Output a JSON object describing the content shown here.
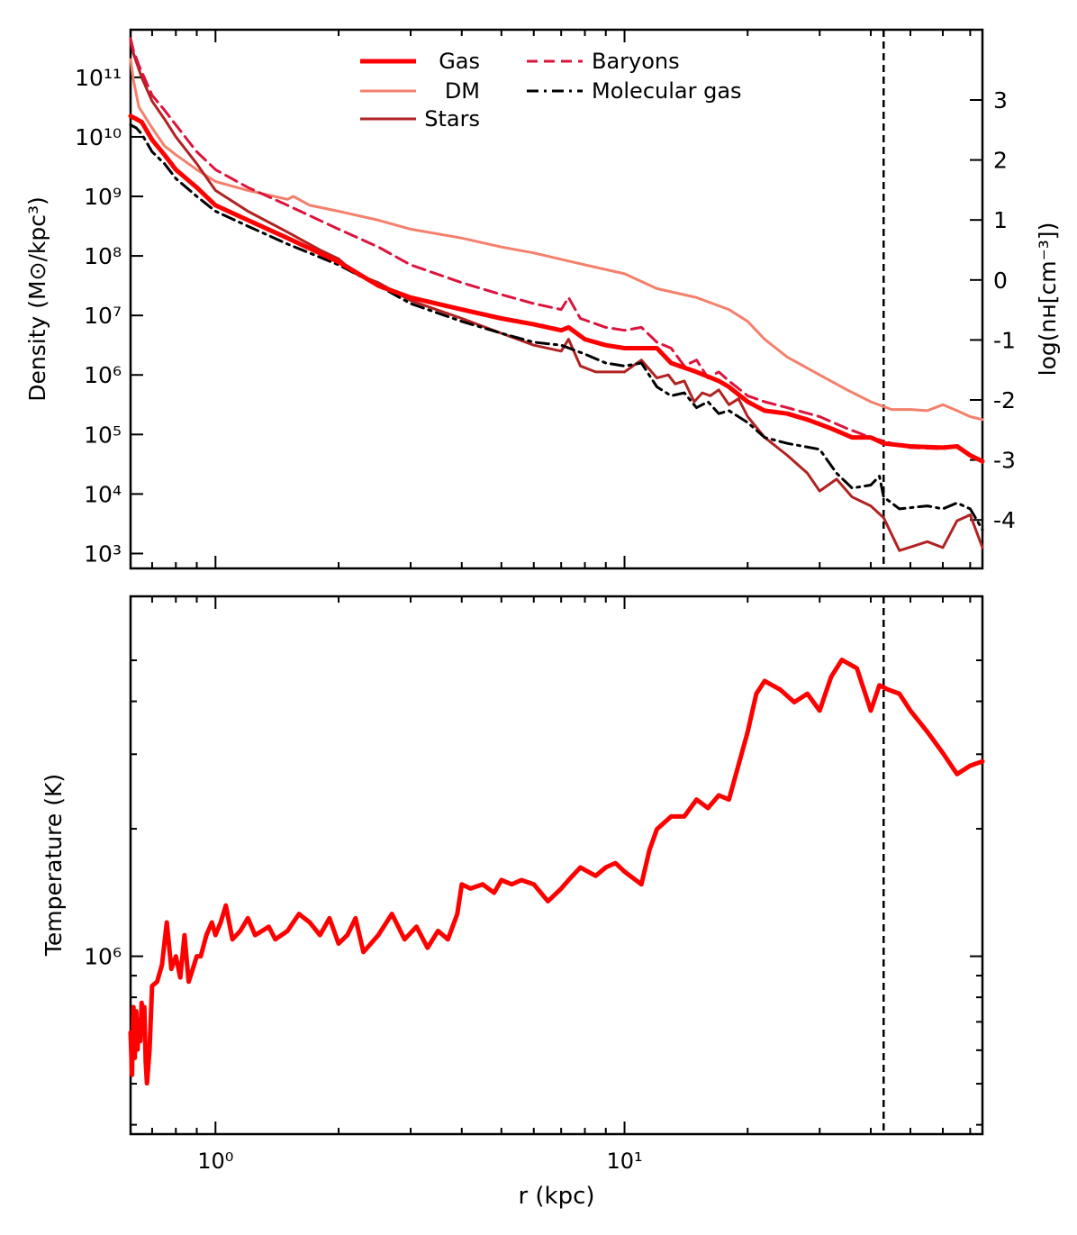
{
  "chart_data": [
    {
      "type": "line",
      "panel": "top",
      "title": "",
      "xlabel": "",
      "ylabel": "Density (M⊙/kpc³)",
      "ylabel_right": "log(nʜ[cm⁻³])",
      "xscale": "log",
      "yscale": "log",
      "xlim": [
        0.62,
        75
      ],
      "ylim_log10": [
        2.75,
        11.8
      ],
      "y_tick_labels": [
        {
          "label": "10³",
          "log10": 3
        },
        {
          "label": "10⁴",
          "log10": 4
        },
        {
          "label": "10⁵",
          "log10": 5
        },
        {
          "label": "10⁶",
          "log10": 6
        },
        {
          "label": "10⁷",
          "log10": 7
        },
        {
          "label": "10⁸",
          "log10": 8
        },
        {
          "label": "10⁹",
          "log10": 9
        },
        {
          "label": "10¹⁰",
          "log10": 10
        },
        {
          "label": "10¹¹",
          "log10": 11
        }
      ],
      "right_axis_ticks": [
        {
          "label": "3",
          "value": 3
        },
        {
          "label": "2",
          "value": 2
        },
        {
          "label": "1",
          "value": 1
        },
        {
          "label": "0",
          "value": 0
        },
        {
          "label": "-1",
          "value": -1
        },
        {
          "label": "-2",
          "value": -2
        },
        {
          "label": "-3",
          "value": -3
        },
        {
          "label": "-4",
          "value": -4
        }
      ],
      "vline_x": 43,
      "legend": [
        {
          "label": "Gas",
          "key": "gas"
        },
        {
          "label": "DM",
          "key": "dm"
        },
        {
          "label": "Stars",
          "key": "stars"
        },
        {
          "label": "Baryons",
          "key": "baryons"
        },
        {
          "label": "Molecular gas",
          "key": "molecular"
        }
      ],
      "series": [
        {
          "name": "Gas",
          "key": "gas",
          "color": "#ff0000",
          "style": "solid",
          "width": 5,
          "x": [
            0.62,
            0.64,
            0.66,
            0.7,
            0.75,
            0.8,
            0.9,
            1.0,
            1.2,
            1.5,
            2.0,
            2.5,
            3.0,
            4.0,
            5.0,
            6.0,
            7.0,
            7.3,
            8.0,
            9.0,
            10.0,
            12.0,
            13.0,
            15.0,
            17.0,
            18.0,
            20.0,
            22.0,
            25.0,
            28.0,
            32.0,
            36.0,
            40.0,
            43.0,
            50.0,
            60.0,
            65.0,
            70.0,
            75.0
          ],
          "y": [
            10.35,
            10.3,
            10.25,
            9.95,
            9.7,
            9.45,
            9.15,
            8.85,
            8.6,
            8.3,
            7.9,
            7.5,
            7.3,
            7.1,
            6.95,
            6.85,
            6.75,
            6.8,
            6.6,
            6.5,
            6.45,
            6.45,
            6.2,
            6.05,
            5.9,
            5.8,
            5.55,
            5.4,
            5.35,
            5.25,
            5.1,
            4.95,
            4.95,
            4.85,
            4.8,
            4.78,
            4.8,
            4.65,
            4.55
          ]
        },
        {
          "name": "DM",
          "key": "dm",
          "color": "#f4806c",
          "style": "solid",
          "width": 3,
          "x": [
            0.62,
            0.63,
            0.65,
            0.7,
            0.75,
            0.8,
            0.9,
            1.0,
            1.2,
            1.5,
            1.55,
            1.7,
            2.0,
            2.5,
            3.0,
            4.0,
            5.0,
            6.0,
            8.0,
            10.0,
            12.0,
            15.0,
            18.0,
            20.0,
            22.0,
            25.0,
            30.0,
            35.0,
            40.0,
            45.0,
            50.0,
            55.0,
            60.0,
            65.0,
            70.0,
            75.0
          ],
          "y": [
            11.3,
            10.95,
            10.5,
            10.15,
            9.85,
            9.7,
            9.45,
            9.25,
            9.1,
            8.95,
            9.0,
            8.85,
            8.75,
            8.6,
            8.45,
            8.3,
            8.15,
            8.05,
            7.85,
            7.7,
            7.45,
            7.3,
            7.1,
            6.9,
            6.6,
            6.3,
            6.0,
            5.75,
            5.55,
            5.42,
            5.42,
            5.4,
            5.5,
            5.4,
            5.3,
            5.25
          ]
        },
        {
          "name": "Stars",
          "key": "stars",
          "color": "#b22222",
          "style": "solid",
          "width": 3,
          "x": [
            0.62,
            0.63,
            0.66,
            0.7,
            0.75,
            0.8,
            0.9,
            1.0,
            1.2,
            1.5,
            1.8,
            2.0,
            2.2,
            2.5,
            3.0,
            4.0,
            5.0,
            6.0,
            7.0,
            7.3,
            7.8,
            8.5,
            10.0,
            11.0,
            12.0,
            12.8,
            13.3,
            14.0,
            14.8,
            15.5,
            16.2,
            17.0,
            18.0,
            19.0,
            20.0,
            22.0,
            25.0,
            28.0,
            30.0,
            33.0,
            36.0,
            40.0,
            43.0,
            47.0,
            55.0,
            60.0,
            65.0,
            70.0,
            75.0
          ],
          "y": [
            11.6,
            11.4,
            11.0,
            10.6,
            10.3,
            10.0,
            9.55,
            9.1,
            8.75,
            8.4,
            8.1,
            7.95,
            7.7,
            7.55,
            7.25,
            6.95,
            6.7,
            6.5,
            6.4,
            6.6,
            6.15,
            6.05,
            6.05,
            6.25,
            5.95,
            6.0,
            5.85,
            5.9,
            5.55,
            5.7,
            5.65,
            5.75,
            5.5,
            5.6,
            5.3,
            4.95,
            4.65,
            4.35,
            4.05,
            4.25,
            3.95,
            3.8,
            3.6,
            3.05,
            3.2,
            3.1,
            3.55,
            3.65,
            3.1
          ]
        },
        {
          "name": "Baryons",
          "key": "baryons",
          "color": "#dc143c",
          "style": "dashed",
          "width": 3,
          "x": [
            0.62,
            0.63,
            0.65,
            0.7,
            0.75,
            0.8,
            0.9,
            1.0,
            1.2,
            1.5,
            2.0,
            2.5,
            3.0,
            4.0,
            5.0,
            6.0,
            7.0,
            7.3,
            7.8,
            9.0,
            10.0,
            11.0,
            12.0,
            13.0,
            14.0,
            15.0,
            16.0,
            17.0,
            18.0,
            20.0,
            22.0,
            25.0,
            30.0,
            35.0,
            40.0,
            45.0,
            50.0,
            60.0,
            65.0,
            70.0,
            75.0
          ],
          "y": [
            11.65,
            11.45,
            11.2,
            10.7,
            10.45,
            10.2,
            9.75,
            9.45,
            9.15,
            8.85,
            8.45,
            8.15,
            7.85,
            7.55,
            7.35,
            7.2,
            7.1,
            7.3,
            6.95,
            6.8,
            6.75,
            6.8,
            6.55,
            6.45,
            6.15,
            6.25,
            5.95,
            6.05,
            5.9,
            5.65,
            5.55,
            5.45,
            5.3,
            5.1,
            4.95,
            4.85,
            4.78,
            4.76,
            4.8,
            4.65,
            4.55
          ]
        },
        {
          "name": "Molecular gas",
          "key": "molecular",
          "color": "#000000",
          "style": "dashdot",
          "width": 3,
          "x": [
            0.62,
            0.64,
            0.66,
            0.7,
            0.75,
            0.8,
            0.9,
            1.0,
            1.2,
            1.5,
            2.0,
            2.5,
            3.0,
            4.0,
            5.0,
            6.0,
            7.0,
            8.0,
            9.0,
            10.0,
            11.0,
            12.0,
            13.0,
            14.0,
            15.0,
            16.0,
            17.0,
            18.0,
            20.0,
            22.0,
            25.0,
            30.0,
            33.0,
            36.0,
            40.0,
            42.0,
            43.0,
            47.0,
            55.0,
            60.0,
            65.0,
            70.0,
            75.0
          ],
          "y": [
            10.2,
            10.15,
            10.05,
            9.75,
            9.55,
            9.3,
            9.0,
            8.75,
            8.5,
            8.2,
            7.85,
            7.5,
            7.2,
            6.9,
            6.7,
            6.55,
            6.5,
            6.35,
            6.2,
            6.15,
            6.2,
            5.8,
            5.65,
            5.7,
            5.45,
            5.55,
            5.35,
            5.4,
            5.2,
            4.95,
            4.85,
            4.75,
            4.35,
            4.1,
            4.15,
            4.3,
            3.95,
            3.75,
            3.8,
            3.75,
            3.85,
            3.75,
            3.4
          ]
        }
      ]
    },
    {
      "type": "line",
      "panel": "bottom",
      "title": "",
      "xlabel": "r (kpc)",
      "ylabel": "Temperature (K)",
      "xscale": "log",
      "yscale": "log",
      "xlim": [
        0.62,
        75
      ],
      "ylim_log10": [
        5.58,
        6.85
      ],
      "x_tick_labels": [
        {
          "label": "10⁰",
          "value": 1
        },
        {
          "label": "10¹",
          "value": 10
        }
      ],
      "y_tick_labels": [
        {
          "label": "10⁶",
          "log10": 6
        }
      ],
      "vline_x": 43,
      "series": [
        {
          "name": "Gas temperature",
          "key": "temp",
          "color": "#ff0000",
          "style": "solid",
          "width": 5,
          "x": [
            0.62,
            0.625,
            0.63,
            0.635,
            0.64,
            0.645,
            0.65,
            0.655,
            0.66,
            0.665,
            0.67,
            0.675,
            0.68,
            0.69,
            0.7,
            0.72,
            0.74,
            0.76,
            0.78,
            0.8,
            0.82,
            0.84,
            0.86,
            0.88,
            0.9,
            0.92,
            0.95,
            0.98,
            1.0,
            1.03,
            1.06,
            1.1,
            1.15,
            1.2,
            1.25,
            1.3,
            1.35,
            1.4,
            1.5,
            1.6,
            1.7,
            1.8,
            1.9,
            2.0,
            2.1,
            2.2,
            2.3,
            2.5,
            2.7,
            2.9,
            3.1,
            3.3,
            3.5,
            3.7,
            3.9,
            4.0,
            4.2,
            4.5,
            4.8,
            5.0,
            5.3,
            5.6,
            6.0,
            6.5,
            7.0,
            7.3,
            7.8,
            8.5,
            9.0,
            9.5,
            10.0,
            11.0,
            11.5,
            12.0,
            13.0,
            14.0,
            15.0,
            16.0,
            17.0,
            18.0,
            20.0,
            21.0,
            22.0,
            24.0,
            26.0,
            28.0,
            30.0,
            32.0,
            34.0,
            37.0,
            40.0,
            42.0,
            44.0,
            47.0,
            50.0,
            55.0,
            60.0,
            65.0,
            70.0,
            75.0
          ],
          "y": [
            5.82,
            5.72,
            5.88,
            5.76,
            5.87,
            5.78,
            5.85,
            5.8,
            5.89,
            5.84,
            5.88,
            5.75,
            5.7,
            5.78,
            5.93,
            5.94,
            5.98,
            6.08,
            5.97,
            6.0,
            5.95,
            6.05,
            5.94,
            5.97,
            6.0,
            6.0,
            6.05,
            6.08,
            6.05,
            6.08,
            6.12,
            6.04,
            6.06,
            6.09,
            6.05,
            6.06,
            6.07,
            6.04,
            6.06,
            6.1,
            6.08,
            6.05,
            6.09,
            6.03,
            6.05,
            6.09,
            6.01,
            6.05,
            6.1,
            6.04,
            6.07,
            6.02,
            6.06,
            6.04,
            6.1,
            6.17,
            6.16,
            6.17,
            6.15,
            6.18,
            6.17,
            6.18,
            6.17,
            6.13,
            6.16,
            6.18,
            6.21,
            6.19,
            6.21,
            6.22,
            6.2,
            6.17,
            6.25,
            6.3,
            6.33,
            6.33,
            6.37,
            6.35,
            6.38,
            6.37,
            6.53,
            6.62,
            6.65,
            6.63,
            6.6,
            6.62,
            6.58,
            6.66,
            6.7,
            6.68,
            6.58,
            6.64,
            6.63,
            6.62,
            6.58,
            6.53,
            6.48,
            6.43,
            6.45,
            6.46
          ]
        }
      ]
    }
  ]
}
